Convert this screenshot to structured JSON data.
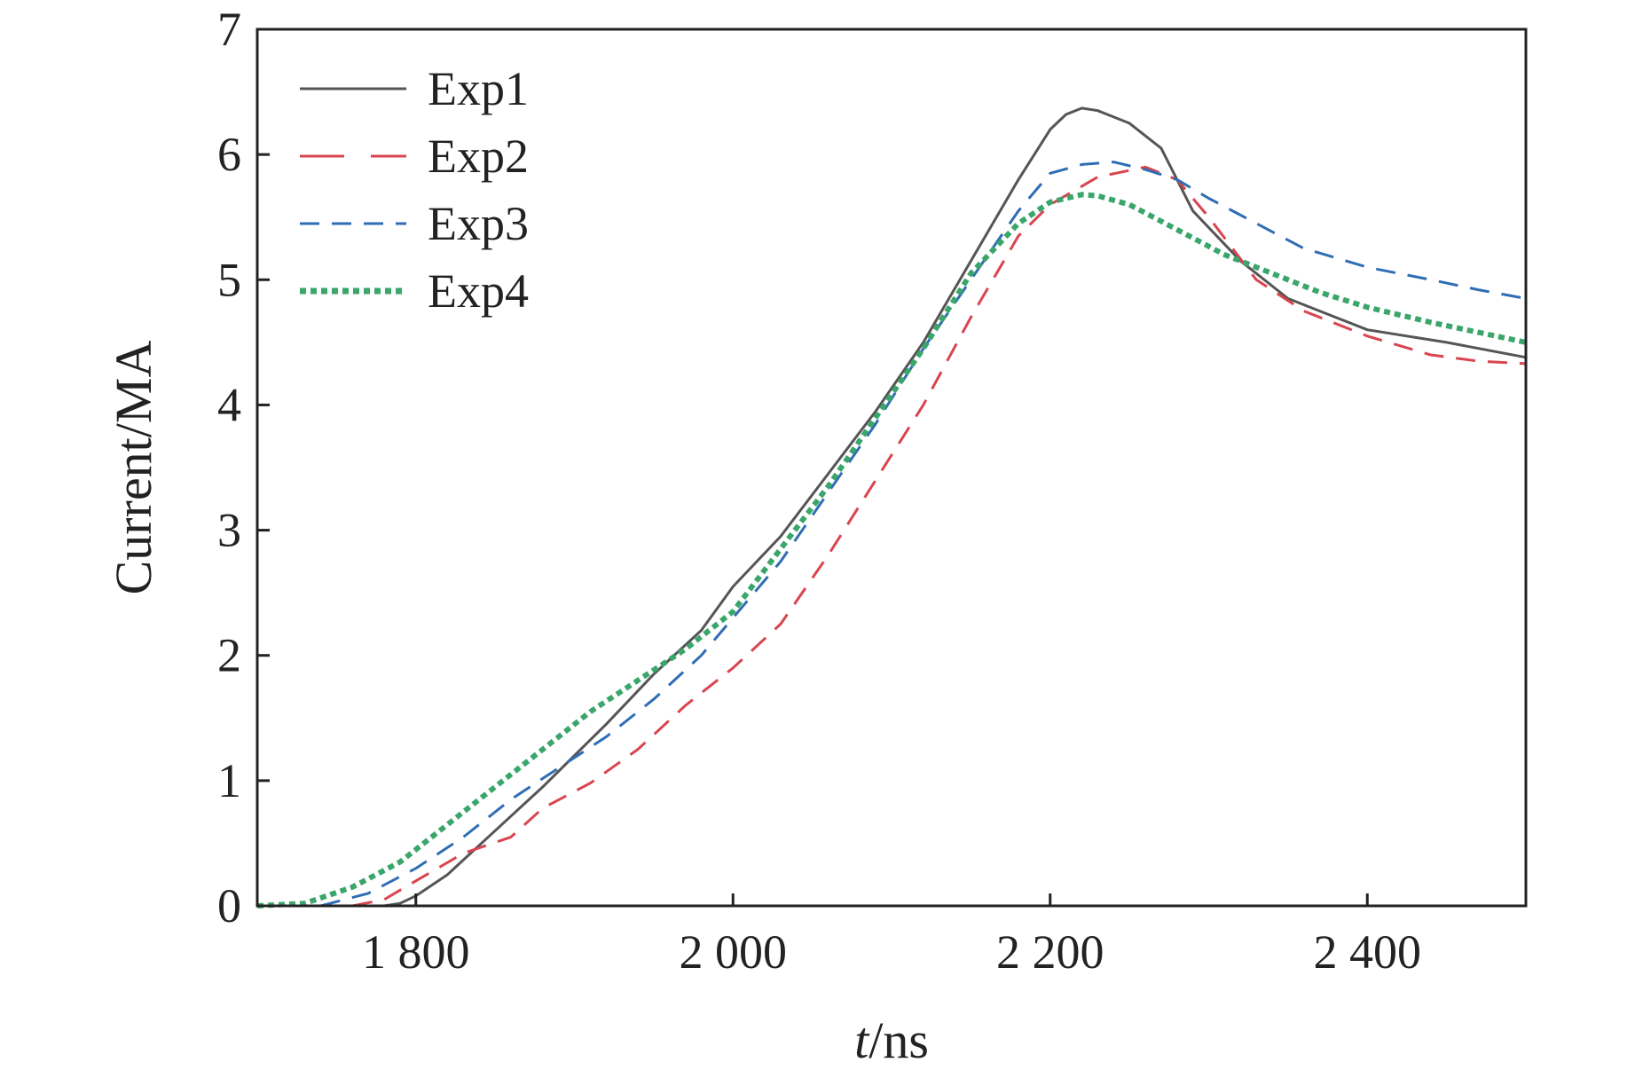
{
  "chart_data": {
    "type": "line",
    "title": "",
    "xlabel_italic": "t",
    "xlabel_rest": "/ns",
    "ylabel": "Current/MA",
    "xlim": [
      1700,
      2500
    ],
    "ylim": [
      0,
      7
    ],
    "x_ticks": [
      1800,
      2000,
      2200,
      2400
    ],
    "x_tick_labels": [
      "1 800",
      "2 000",
      "2 200",
      "2 400"
    ],
    "y_ticks": [
      0,
      1,
      2,
      3,
      4,
      5,
      6,
      7
    ],
    "y_tick_labels": [
      "0",
      "1",
      "2",
      "3",
      "4",
      "5",
      "6",
      "7"
    ],
    "legend_position": "top-left",
    "grid": false,
    "series": [
      {
        "name": "Exp1",
        "color": "#555555",
        "style": "solid",
        "x": [
          1700,
          1780,
          1790,
          1800,
          1820,
          1850,
          1880,
          1900,
          1920,
          1950,
          1980,
          2000,
          2030,
          2060,
          2090,
          2120,
          2150,
          2180,
          2200,
          2210,
          2220,
          2230,
          2250,
          2270,
          2290,
          2320,
          2350,
          2380,
          2400,
          2450,
          2500
        ],
        "values": [
          0,
          0,
          0.02,
          0.08,
          0.25,
          0.6,
          0.95,
          1.2,
          1.45,
          1.85,
          2.2,
          2.55,
          2.95,
          3.45,
          3.95,
          4.5,
          5.15,
          5.8,
          6.2,
          6.32,
          6.37,
          6.35,
          6.25,
          6.05,
          5.55,
          5.15,
          4.85,
          4.7,
          4.6,
          4.5,
          4.38
        ]
      },
      {
        "name": "Exp2",
        "color": "#d9454f",
        "style": "dashed",
        "x": [
          1700,
          1760,
          1780,
          1800,
          1830,
          1860,
          1880,
          1910,
          1940,
          1970,
          2000,
          2030,
          2060,
          2090,
          2120,
          2150,
          2180,
          2200,
          2230,
          2260,
          2280,
          2300,
          2330,
          2360,
          2400,
          2440,
          2470,
          2500
        ],
        "values": [
          0,
          0,
          0.05,
          0.2,
          0.42,
          0.55,
          0.78,
          0.98,
          1.25,
          1.6,
          1.9,
          2.25,
          2.8,
          3.4,
          4.0,
          4.7,
          5.35,
          5.6,
          5.82,
          5.9,
          5.8,
          5.5,
          5.0,
          4.75,
          4.55,
          4.4,
          4.35,
          4.33
        ]
      },
      {
        "name": "Exp3",
        "color": "#2f6db5",
        "style": "dashed",
        "x": [
          1700,
          1740,
          1770,
          1800,
          1830,
          1860,
          1890,
          1920,
          1950,
          1980,
          2000,
          2030,
          2060,
          2090,
          2120,
          2150,
          2180,
          2200,
          2220,
          2240,
          2260,
          2280,
          2300,
          2330,
          2360,
          2400,
          2440,
          2470,
          2500
        ],
        "values": [
          0,
          0,
          0.1,
          0.3,
          0.55,
          0.85,
          1.1,
          1.35,
          1.65,
          2.0,
          2.3,
          2.75,
          3.3,
          3.85,
          4.45,
          5.0,
          5.55,
          5.85,
          5.92,
          5.94,
          5.88,
          5.8,
          5.65,
          5.45,
          5.25,
          5.1,
          5.0,
          4.92,
          4.85
        ]
      },
      {
        "name": "Exp4",
        "color": "#3aa66b",
        "style": "dotted",
        "x": [
          1700,
          1730,
          1760,
          1790,
          1820,
          1850,
          1880,
          1910,
          1940,
          1970,
          2000,
          2030,
          2060,
          2090,
          2120,
          2150,
          2180,
          2200,
          2220,
          2230,
          2250,
          2280,
          2310,
          2340,
          2370,
          2400,
          2440,
          2470,
          2500
        ],
        "values": [
          0,
          0.02,
          0.15,
          0.35,
          0.65,
          0.95,
          1.25,
          1.55,
          1.8,
          2.05,
          2.35,
          2.85,
          3.35,
          3.9,
          4.45,
          5.05,
          5.45,
          5.62,
          5.68,
          5.67,
          5.6,
          5.4,
          5.2,
          5.05,
          4.9,
          4.78,
          4.66,
          4.58,
          4.5
        ]
      }
    ]
  }
}
